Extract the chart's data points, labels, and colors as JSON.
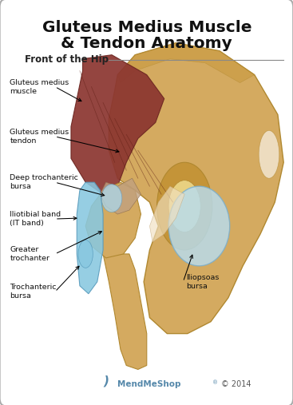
{
  "title_line1": "Gluteus Medius Muscle",
  "title_line2": "& Tendon Anatomy",
  "subtitle": "Front of the Hip",
  "bg_color": "#ffffff",
  "title_color": "#111111",
  "subtitle_color": "#222222",
  "label_color": "#111111",
  "footer_brand": "MendMeShop",
  "footer_reg": "®",
  "footer_copy": "© 2014",
  "footer_color": "#5588aa",
  "footer_copy_color": "#555555",
  "border_color": "#aaaaaa",
  "bone_color": "#d4aa60",
  "bone_edge": "#b08830",
  "muscle_color": "#8b3530",
  "muscle_edge": "#6b2520",
  "bursa_color": "#aad8ee",
  "bursa_edge": "#6699bb",
  "itband_color": "#88c8e0",
  "itband_edge": "#5599bb",
  "iliopsoas_color": "#b8ddf0",
  "iliopsoas_edge": "#7aaecc",
  "line_color": "#888888",
  "arrow_color": "#000000"
}
